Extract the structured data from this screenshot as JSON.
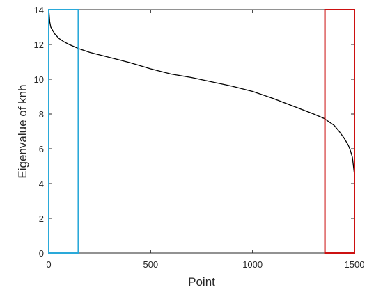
{
  "chart_data": {
    "type": "line",
    "title": "",
    "xlabel": "Point",
    "ylabel": "Eigenvalue of knh",
    "xlim": [
      0,
      1500
    ],
    "ylim": [
      0,
      14
    ],
    "xticks": [
      0,
      500,
      1000,
      1500
    ],
    "yticks": [
      0,
      2,
      4,
      6,
      8,
      10,
      12,
      14
    ],
    "xtick_labels": [
      "0",
      "500",
      "1000",
      "1500"
    ],
    "ytick_labels": [
      "0",
      "2",
      "4",
      "6",
      "8",
      "10",
      "12",
      "14"
    ],
    "grid": false,
    "series": [
      {
        "color": "#000000",
        "x": [
          1,
          5,
          10,
          20,
          30,
          50,
          75,
          100,
          150,
          200,
          250,
          300,
          400,
          500,
          600,
          700,
          800,
          900,
          1000,
          1100,
          1200,
          1300,
          1350,
          1400,
          1425,
          1450,
          1470,
          1480,
          1490,
          1495,
          1500
        ],
        "y": [
          13.9,
          13.3,
          13.0,
          12.8,
          12.6,
          12.35,
          12.15,
          12.0,
          11.75,
          11.55,
          11.4,
          11.25,
          10.95,
          10.6,
          10.3,
          10.1,
          9.85,
          9.6,
          9.3,
          8.9,
          8.45,
          8.0,
          7.75,
          7.35,
          7.0,
          6.6,
          6.2,
          5.9,
          5.5,
          5.0,
          4.5
        ]
      }
    ],
    "highlight_regions": [
      {
        "x_range": [
          0,
          145
        ],
        "y_range": [
          0,
          14
        ],
        "color": "#2aa9d9"
      },
      {
        "x_range": [
          1355,
          1500
        ],
        "y_range": [
          0,
          14
        ],
        "color": "#cc1111"
      }
    ]
  }
}
